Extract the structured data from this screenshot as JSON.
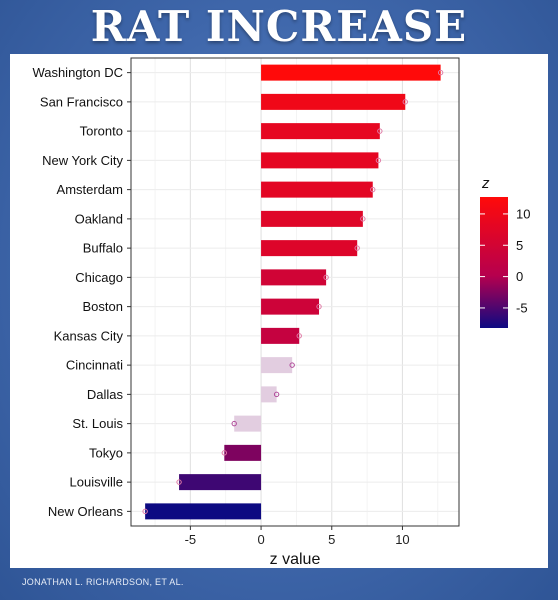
{
  "header": {
    "title": "RAT INCREASE"
  },
  "credit": "JONATHAN L. RICHARDSON, ET AL.",
  "chart_data": {
    "type": "bar",
    "orientation": "horizontal",
    "title": "",
    "xlabel": "z value",
    "ylabel": "",
    "xlim": [
      -9.2,
      14.0
    ],
    "x_ticks": [
      -5,
      0,
      5,
      10
    ],
    "grid": true,
    "categories": [
      "Washington DC",
      "San Francisco",
      "Toronto",
      "New York City",
      "Amsterdam",
      "Oakland",
      "Buffalo",
      "Chicago",
      "Boston",
      "Kansas City",
      "Cincinnati",
      "Dallas",
      "St. Louis",
      "Tokyo",
      "Louisville",
      "New Orleans"
    ],
    "values": [
      12.7,
      10.2,
      8.4,
      8.3,
      7.9,
      7.2,
      6.8,
      4.6,
      4.1,
      2.7,
      2.2,
      1.1,
      -1.9,
      -2.6,
      -5.8,
      -8.2
    ],
    "legend": {
      "title": "z",
      "position": "right",
      "ticks": [
        10,
        5,
        0,
        -5
      ],
      "range": [
        -8.2,
        12.7
      ],
      "colors": {
        "high": "#ff0a0a",
        "mid": "#b6004e",
        "low": "#0d0a82"
      }
    }
  }
}
